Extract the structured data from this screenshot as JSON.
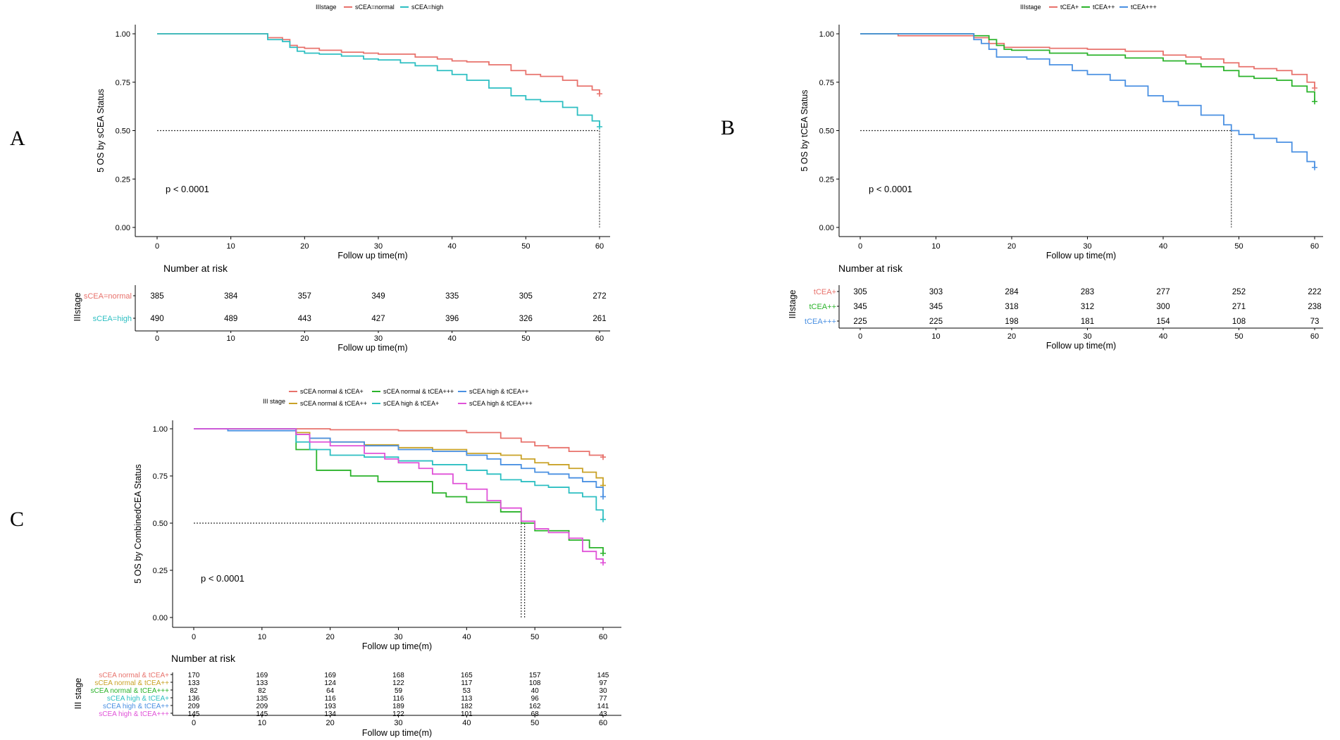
{
  "chart_data": [
    {
      "id": "A",
      "type": "line",
      "panel_label": "A",
      "legend_title": "IIIstage",
      "ylabel": "5 OS by sCEA Status",
      "xlabel": "Follow up time(m)",
      "xlim": [
        0,
        60
      ],
      "ylim": [
        0,
        1
      ],
      "xticks": [
        "0",
        "10",
        "20",
        "30",
        "40",
        "50",
        "60"
      ],
      "yticks": [
        "0.00",
        "0.25",
        "0.50",
        "0.75",
        "1.00"
      ],
      "pvalue": "p < 0.0001",
      "median_lines": [
        60
      ],
      "series": [
        {
          "name": "sCEA=normal",
          "color": "#E8726C",
          "x": [
            0,
            15,
            17,
            18,
            19,
            20,
            22,
            25,
            28,
            30,
            35,
            38,
            40,
            42,
            45,
            48,
            50,
            52,
            55,
            57,
            59,
            60
          ],
          "y": [
            1.0,
            0.98,
            0.97,
            0.94,
            0.93,
            0.925,
            0.915,
            0.905,
            0.9,
            0.895,
            0.88,
            0.87,
            0.86,
            0.855,
            0.84,
            0.81,
            0.79,
            0.78,
            0.76,
            0.73,
            0.71,
            0.69
          ]
        },
        {
          "name": "sCEA=high",
          "color": "#2DBFC2",
          "x": [
            0,
            15,
            17,
            18,
            19,
            20,
            22,
            25,
            28,
            30,
            33,
            35,
            38,
            40,
            42,
            45,
            48,
            50,
            52,
            55,
            57,
            59,
            60
          ],
          "y": [
            1.0,
            0.97,
            0.96,
            0.93,
            0.91,
            0.9,
            0.895,
            0.885,
            0.87,
            0.865,
            0.85,
            0.835,
            0.81,
            0.79,
            0.76,
            0.72,
            0.68,
            0.66,
            0.65,
            0.62,
            0.58,
            0.55,
            0.52
          ]
        }
      ],
      "risk_table": {
        "title": "Number at risk",
        "group_title": "IIIstage",
        "x": [
          0,
          10,
          20,
          30,
          40,
          50,
          60
        ],
        "rows": [
          {
            "label": "sCEA=normal",
            "color": "#E8726C",
            "values": [
              "385",
              "384",
              "357",
              "349",
              "335",
              "305",
              "272"
            ]
          },
          {
            "label": "sCEA=high",
            "color": "#2DBFC2",
            "values": [
              "490",
              "489",
              "443",
              "427",
              "396",
              "326",
              "261"
            ]
          }
        ]
      }
    },
    {
      "id": "B",
      "type": "line",
      "panel_label": "B",
      "legend_title": "IIIstage",
      "ylabel": "5 OS by tCEA Status",
      "xlabel": "Follow up time(m)",
      "xlim": [
        0,
        60
      ],
      "ylim": [
        0,
        1
      ],
      "xticks": [
        "0",
        "10",
        "20",
        "30",
        "40",
        "50",
        "60"
      ],
      "yticks": [
        "0.00",
        "0.25",
        "0.50",
        "0.75",
        "1.00"
      ],
      "pvalue": "p < 0.0001",
      "median_lines": [
        49
      ],
      "series": [
        {
          "name": "tCEA+",
          "color": "#E8726C",
          "x": [
            0,
            5,
            15,
            17,
            19,
            20,
            25,
            30,
            35,
            40,
            43,
            45,
            48,
            50,
            52,
            55,
            57,
            59,
            60
          ],
          "y": [
            1.0,
            0.99,
            0.98,
            0.95,
            0.93,
            0.93,
            0.925,
            0.92,
            0.91,
            0.89,
            0.88,
            0.87,
            0.85,
            0.83,
            0.82,
            0.81,
            0.79,
            0.75,
            0.72
          ]
        },
        {
          "name": "tCEA++",
          "color": "#2BB32B",
          "x": [
            0,
            15,
            17,
            18,
            19,
            20,
            25,
            30,
            35,
            40,
            43,
            45,
            48,
            50,
            52,
            55,
            57,
            59,
            60
          ],
          "y": [
            1.0,
            0.99,
            0.97,
            0.94,
            0.92,
            0.915,
            0.9,
            0.89,
            0.875,
            0.86,
            0.845,
            0.83,
            0.81,
            0.78,
            0.77,
            0.76,
            0.73,
            0.7,
            0.65
          ]
        },
        {
          "name": "tCEA+++",
          "color": "#4A90E2",
          "x": [
            0,
            15,
            16,
            17,
            18,
            20,
            22,
            25,
            28,
            30,
            33,
            35,
            38,
            40,
            42,
            45,
            48,
            49,
            50,
            52,
            55,
            57,
            59,
            60
          ],
          "y": [
            1.0,
            0.97,
            0.95,
            0.92,
            0.88,
            0.88,
            0.87,
            0.84,
            0.81,
            0.79,
            0.76,
            0.73,
            0.68,
            0.65,
            0.63,
            0.58,
            0.53,
            0.5,
            0.48,
            0.46,
            0.44,
            0.39,
            0.34,
            0.31
          ]
        }
      ],
      "risk_table": {
        "title": "Number at risk",
        "group_title": "IIIstage",
        "x": [
          0,
          10,
          20,
          30,
          40,
          50,
          60
        ],
        "rows": [
          {
            "label": "tCEA+",
            "color": "#E8726C",
            "values": [
              "305",
              "303",
              "284",
              "283",
              "277",
              "252",
              "222"
            ]
          },
          {
            "label": "tCEA++",
            "color": "#2BB32B",
            "values": [
              "345",
              "345",
              "318",
              "312",
              "300",
              "271",
              "238"
            ]
          },
          {
            "label": "tCEA+++",
            "color": "#4A90E2",
            "values": [
              "225",
              "225",
              "198",
              "181",
              "154",
              "108",
              "73"
            ]
          }
        ]
      }
    },
    {
      "id": "C",
      "type": "line",
      "panel_label": "C",
      "legend_title": "III stage",
      "ylabel": "5 OS by CombinedCEA Status",
      "xlabel": "Follow up time(m)",
      "xlim": [
        0,
        60
      ],
      "ylim": [
        0,
        1
      ],
      "xticks": [
        "0",
        "10",
        "20",
        "30",
        "40",
        "50",
        "60"
      ],
      "yticks": [
        "0.00",
        "0.25",
        "0.50",
        "0.75",
        "1.00"
      ],
      "pvalue": "p < 0.0001",
      "median_lines": [
        48,
        48.5
      ],
      "series": [
        {
          "name": "sCEA normal & tCEA+",
          "color": "#E8726C",
          "x": [
            0,
            15,
            20,
            30,
            35,
            40,
            45,
            48,
            50,
            52,
            55,
            58,
            60
          ],
          "y": [
            1.0,
            1.0,
            0.995,
            0.99,
            0.99,
            0.98,
            0.95,
            0.93,
            0.91,
            0.9,
            0.88,
            0.86,
            0.85
          ]
        },
        {
          "name": "sCEA normal & tCEA++",
          "color": "#C9A227",
          "x": [
            0,
            15,
            17,
            20,
            25,
            30,
            35,
            40,
            45,
            48,
            50,
            52,
            55,
            57,
            59,
            60
          ],
          "y": [
            1.0,
            0.98,
            0.95,
            0.93,
            0.915,
            0.9,
            0.89,
            0.87,
            0.86,
            0.84,
            0.82,
            0.81,
            0.79,
            0.77,
            0.74,
            0.7
          ]
        },
        {
          "name": "sCEA normal & tCEA+++",
          "color": "#2BB32B",
          "x": [
            0,
            15,
            18,
            23,
            27,
            30,
            35,
            37,
            40,
            45,
            48,
            50,
            55,
            58,
            60
          ],
          "y": [
            1.0,
            0.89,
            0.78,
            0.75,
            0.72,
            0.72,
            0.66,
            0.64,
            0.61,
            0.56,
            0.5,
            0.46,
            0.41,
            0.37,
            0.34
          ]
        },
        {
          "name": "sCEA high & tCEA+",
          "color": "#2DBFC2",
          "x": [
            0,
            15,
            17,
            20,
            25,
            30,
            35,
            40,
            43,
            45,
            48,
            50,
            52,
            55,
            57,
            59,
            60
          ],
          "y": [
            1.0,
            0.93,
            0.89,
            0.86,
            0.85,
            0.83,
            0.81,
            0.78,
            0.76,
            0.73,
            0.72,
            0.7,
            0.69,
            0.66,
            0.64,
            0.57,
            0.52
          ]
        },
        {
          "name": "sCEA high & tCEA++",
          "color": "#4A90E2",
          "x": [
            0,
            5,
            15,
            17,
            20,
            25,
            30,
            35,
            40,
            43,
            45,
            48,
            50,
            52,
            55,
            57,
            59,
            60
          ],
          "y": [
            1.0,
            0.99,
            0.97,
            0.95,
            0.93,
            0.91,
            0.89,
            0.88,
            0.86,
            0.84,
            0.81,
            0.79,
            0.77,
            0.76,
            0.74,
            0.72,
            0.69,
            0.64
          ]
        },
        {
          "name": "sCEA high & tCEA+++",
          "color": "#E052D8",
          "x": [
            0,
            15,
            17,
            20,
            25,
            28,
            30,
            33,
            35,
            38,
            40,
            43,
            45,
            48,
            50,
            52,
            55,
            57,
            59,
            60
          ],
          "y": [
            1.0,
            0.97,
            0.93,
            0.91,
            0.87,
            0.84,
            0.82,
            0.79,
            0.76,
            0.71,
            0.68,
            0.62,
            0.58,
            0.51,
            0.47,
            0.45,
            0.42,
            0.35,
            0.31,
            0.29
          ]
        }
      ],
      "risk_table": {
        "title": "Number at risk",
        "group_title": "III stage",
        "x": [
          0,
          10,
          20,
          30,
          40,
          50,
          60
        ],
        "rows": [
          {
            "label": "sCEA normal & tCEA+",
            "color": "#E8726C",
            "values": [
              "170",
              "169",
              "169",
              "168",
              "165",
              "157",
              "145"
            ]
          },
          {
            "label": "sCEA normal & tCEA++",
            "color": "#C9A227",
            "values": [
              "133",
              "133",
              "124",
              "122",
              "117",
              "108",
              "97"
            ]
          },
          {
            "label": "sCEA normal & tCEA+++",
            "color": "#2BB32B",
            "values": [
              "82",
              "82",
              "64",
              "59",
              "53",
              "40",
              "30"
            ]
          },
          {
            "label": "sCEA high & tCEA+",
            "color": "#2DBFC2",
            "values": [
              "136",
              "135",
              "116",
              "116",
              "113",
              "96",
              "77"
            ]
          },
          {
            "label": "sCEA high & tCEA++",
            "color": "#4A90E2",
            "values": [
              "209",
              "209",
              "193",
              "189",
              "182",
              "162",
              "141"
            ]
          },
          {
            "label": "sCEA high & tCEA+++",
            "color": "#E052D8",
            "values": [
              "145",
              "145",
              "134",
              "122",
              "101",
              "68",
              "43"
            ]
          }
        ]
      }
    }
  ]
}
